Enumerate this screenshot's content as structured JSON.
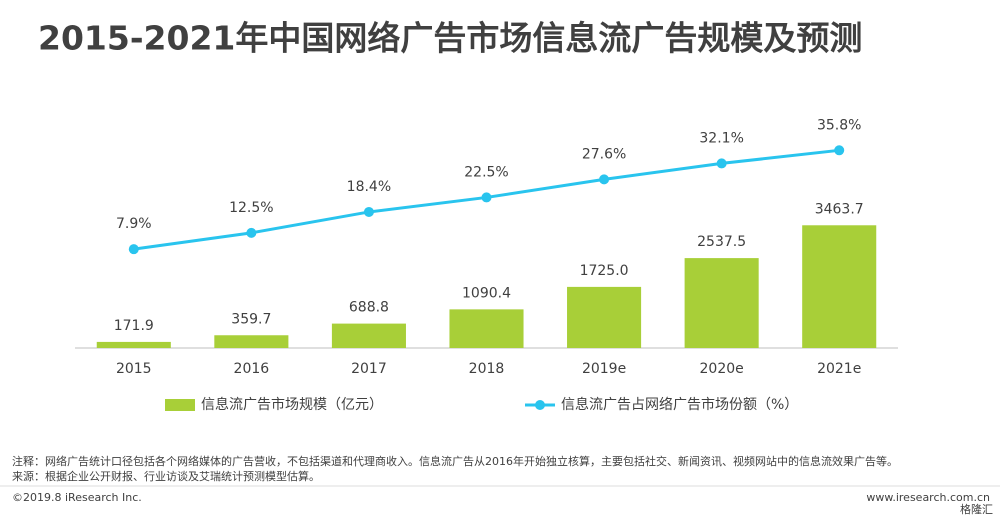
{
  "chart_data": {
    "type": "bar-line",
    "title": "2015-2021年中国网络广告市场信息流广告规模及预测",
    "categories": [
      "2015",
      "2016",
      "2017",
      "2018",
      "2019e",
      "2020e",
      "2021e"
    ],
    "series": [
      {
        "name": "信息流广告市场规模（亿元）",
        "color": "#a8cf38",
        "type": "bar",
        "values": [
          171.9,
          359.7,
          688.8,
          1090.4,
          1725.0,
          2537.5,
          3463.7
        ],
        "value_labels": [
          "171.9",
          "359.7",
          "688.8",
          "1090.4",
          "1725.0",
          "2537.5",
          "3463.7"
        ]
      },
      {
        "name": "信息流广告占网络广告市场份额（%）",
        "color": "#29c4ee",
        "type": "line",
        "axis": "y2",
        "values": [
          7.9,
          12.5,
          18.4,
          22.5,
          27.6,
          32.1,
          35.8
        ],
        "value_labels": [
          "7.9%",
          "12.5%",
          "18.4%",
          "22.5%",
          "27.6%",
          "32.1%",
          "35.8%"
        ]
      }
    ],
    "ylim": [
      0,
      7000
    ],
    "y2lim": [
      -20,
      50
    ],
    "legend": "bottom"
  },
  "footer": {
    "notes": [
      "注释：网络广告统计口径包括各个网络媒体的广告营收，不包括渠道和代理商收入。信息流广告从2016年开始独立核算，主要包括社交、新闻资讯、视频网站中的信息流效果广告等。",
      "来源：根据企业公开财报、行业访谈及艾瑞统计预测模型估算。"
    ],
    "copyright": "©2019.8 iResearch Inc.",
    "website": "www.iresearch.com.cn",
    "watermark": "格隆汇"
  }
}
